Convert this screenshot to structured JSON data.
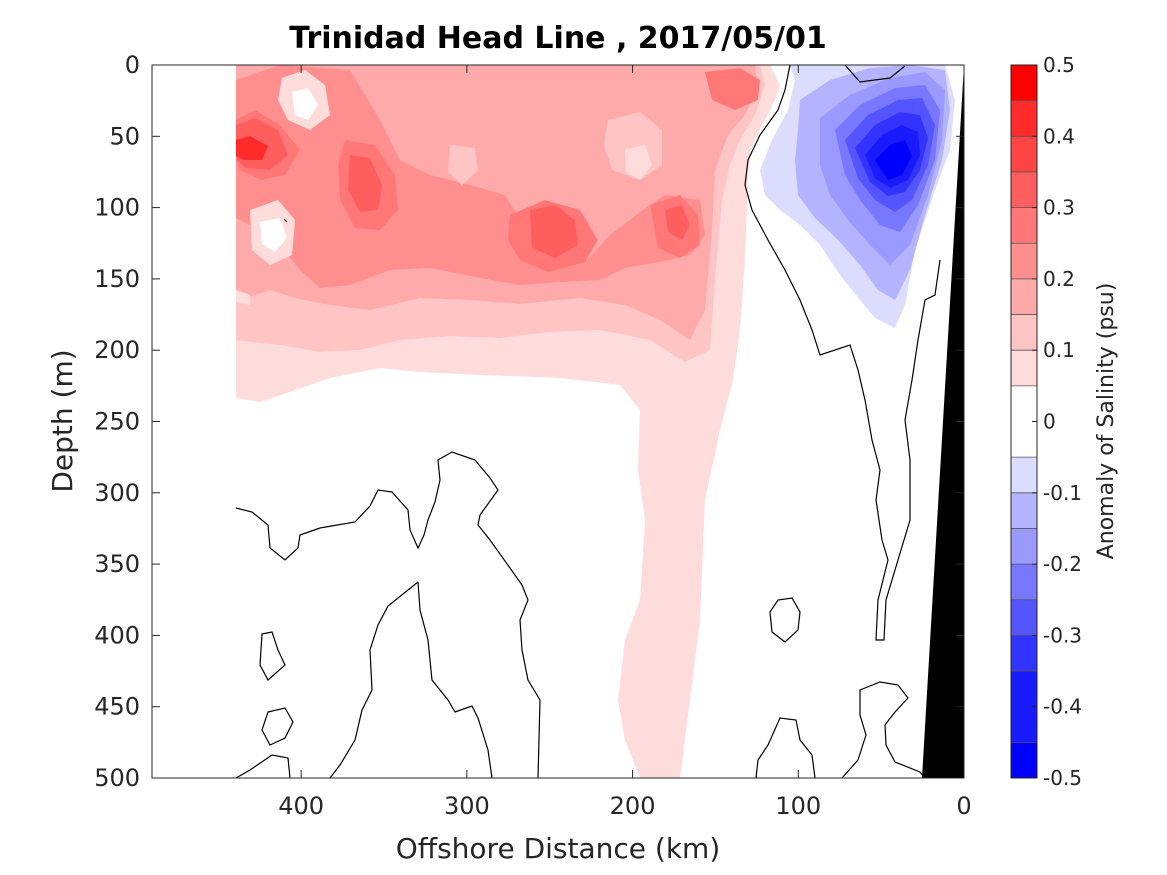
{
  "chart_data": {
    "type": "heatmap",
    "title": "Trinidad Head Line , 2017/05/01",
    "xlabel": "Offshore Distance (km)",
    "ylabel": "Depth (m)",
    "xlim": [
      490,
      0
    ],
    "ylim": [
      0,
      500
    ],
    "x_direction": "reversed",
    "y_direction": "reversed (depth increasing downward)",
    "x_ticks": [
      "400",
      "300",
      "200",
      "100",
      "0"
    ],
    "y_ticks": [
      "0",
      "50",
      "100",
      "150",
      "200",
      "250",
      "300",
      "350",
      "400",
      "450",
      "500"
    ],
    "colorbar": {
      "label": "Anomaly of Salinity (psu)",
      "range": [
        -0.5,
        0.5
      ],
      "ticks": [
        "-0.5",
        "-0.4",
        "-0.3",
        "-0.2",
        "-0.1",
        "0",
        "0.1",
        "0.2",
        "0.3",
        "0.4",
        "0.5"
      ],
      "levels": [
        {
          "from": -0.5,
          "to": -0.45,
          "color": "#0000ff"
        },
        {
          "from": -0.45,
          "to": -0.35,
          "color": "#1a1aff"
        },
        {
          "from": -0.35,
          "to": -0.3,
          "color": "#3333ff"
        },
        {
          "from": -0.3,
          "to": -0.25,
          "color": "#5555ff"
        },
        {
          "from": -0.25,
          "to": -0.2,
          "color": "#7777ff"
        },
        {
          "from": -0.2,
          "to": -0.15,
          "color": "#9999ff"
        },
        {
          "from": -0.15,
          "to": -0.1,
          "color": "#b3b3ff"
        },
        {
          "from": -0.1,
          "to": -0.05,
          "color": "#dcdcff"
        },
        {
          "from": -0.05,
          "to": 0.05,
          "color": "#ffffff"
        },
        {
          "from": 0.05,
          "to": 0.1,
          "color": "#ffdcdc"
        },
        {
          "from": 0.1,
          "to": 0.15,
          "color": "#ffc4c4"
        },
        {
          "from": 0.15,
          "to": 0.2,
          "color": "#ffaaaa"
        },
        {
          "from": 0.2,
          "to": 0.25,
          "color": "#ff8f8f"
        },
        {
          "from": 0.25,
          "to": 0.3,
          "color": "#ff7777"
        },
        {
          "from": 0.3,
          "to": 0.35,
          "color": "#ff5e5e"
        },
        {
          "from": 0.35,
          "to": 0.4,
          "color": "#ff4444"
        },
        {
          "from": 0.4,
          "to": 0.45,
          "color": "#ff2a2a"
        },
        {
          "from": 0.45,
          "to": 0.5,
          "color": "#ff0000"
        }
      ]
    },
    "features": [
      {
        "name": "positive salinity anomaly, upper water column",
        "x_range": [
          440,
          120
        ],
        "depth_range": [
          0,
          235
        ],
        "value_range": [
          0.05,
          0.45
        ],
        "peak": {
          "x": 430,
          "depth": 60,
          "value": 0.4
        }
      },
      {
        "name": "positive anomaly tongue",
        "x_range": [
          205,
          170
        ],
        "depth_range": [
          235,
          500
        ],
        "value": 0.1
      },
      {
        "name": "negative salinity anomaly near coast",
        "x_range": [
          125,
          10
        ],
        "depth_range": [
          0,
          180
        ],
        "value_range": [
          -0.45,
          -0.05
        ],
        "peak": {
          "x": 40,
          "depth": 75,
          "value": -0.45
        }
      },
      {
        "name": "bathymetry",
        "x_range": [
          28,
          0
        ],
        "depth_range": [
          0,
          500
        ],
        "color": "#000000"
      }
    ]
  }
}
